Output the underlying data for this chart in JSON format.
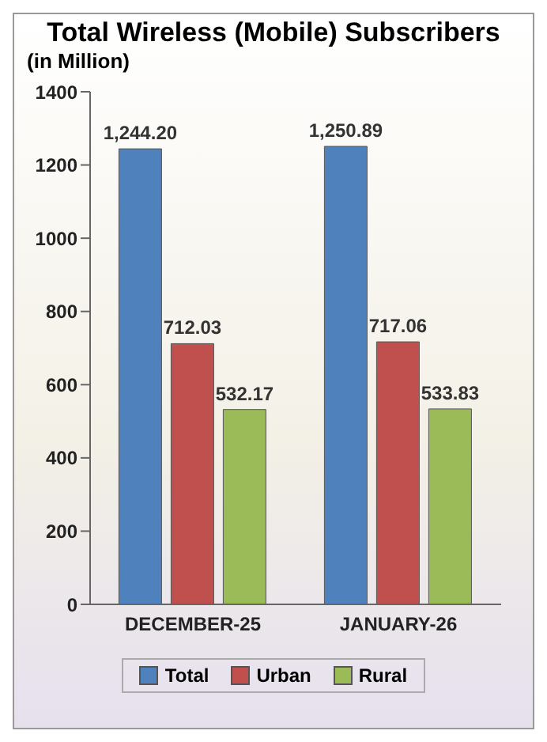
{
  "chart_data": {
    "type": "bar",
    "title": "Total Wireless (Mobile) Subscribers",
    "subtitle": "(in Million)",
    "categories": [
      "DECEMBER-25",
      "JANUARY-26"
    ],
    "series": [
      {
        "name": "Total",
        "color": "#4f81bd",
        "values": [
          1244.2,
          1250.89
        ],
        "value_labels": [
          "1,244.20",
          "1,250.89"
        ]
      },
      {
        "name": "Urban",
        "color": "#c0504d",
        "values": [
          712.03,
          717.06
        ],
        "value_labels": [
          "712.03",
          "717.06"
        ]
      },
      {
        "name": "Rural",
        "color": "#9bbb59",
        "values": [
          532.17,
          533.83
        ],
        "value_labels": [
          "532.17",
          "533.83"
        ]
      }
    ],
    "ylim": [
      0,
      1400
    ],
    "yticks": [
      0,
      200,
      400,
      600,
      800,
      1000,
      1200,
      1400
    ],
    "grid": false,
    "legend": "bottom"
  }
}
